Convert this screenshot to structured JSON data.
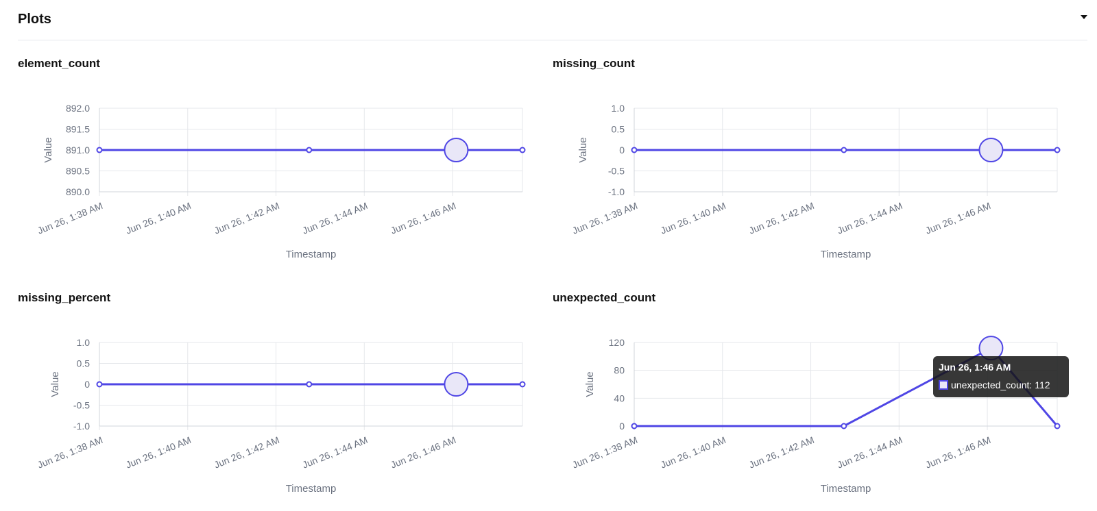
{
  "section": {
    "title": "Plots",
    "toggle_icon": "caret-down-icon"
  },
  "colors": {
    "line": "#4f46e5",
    "point_fill": "#e9e7f8",
    "grid": "#e5e7eb",
    "tick": "#6b7280"
  },
  "chart_data": [
    {
      "type": "line",
      "title": "element_count",
      "xlabel": "Timestamp",
      "ylabel": "Value",
      "x_ticks": [
        "Jun 26, 1:38 AM",
        "Jun 26, 1:40 AM",
        "Jun 26, 1:42 AM",
        "Jun 26, 1:44 AM",
        "Jun 26, 1:46 AM"
      ],
      "y_ticks": [
        "892.0",
        "891.5",
        "891.0",
        "890.5",
        "890.0"
      ],
      "ylim": [
        890.0,
        892.0
      ],
      "xlim": [
        "1:38 AM",
        "1:47:35 AM"
      ],
      "grid": true,
      "series": [
        {
          "x": [
            "1:38 AM",
            "1:42:45 AM",
            "1:46:05 AM",
            "1:47:35 AM"
          ],
          "values": [
            891,
            891,
            891,
            891
          ]
        }
      ],
      "highlighted_point": 2
    },
    {
      "type": "line",
      "title": "missing_count",
      "xlabel": "Timestamp",
      "ylabel": "Value",
      "x_ticks": [
        "Jun 26, 1:38 AM",
        "Jun 26, 1:40 AM",
        "Jun 26, 1:42 AM",
        "Jun 26, 1:44 AM",
        "Jun 26, 1:46 AM"
      ],
      "y_ticks": [
        "1.0",
        "0.5",
        "0",
        "-0.5",
        "-1.0"
      ],
      "ylim": [
        -1.0,
        1.0
      ],
      "xlim": [
        "1:38 AM",
        "1:47:35 AM"
      ],
      "grid": true,
      "series": [
        {
          "x": [
            "1:38 AM",
            "1:42:45 AM",
            "1:46:05 AM",
            "1:47:35 AM"
          ],
          "values": [
            0,
            0,
            0,
            0
          ]
        }
      ],
      "highlighted_point": 2
    },
    {
      "type": "line",
      "title": "missing_percent",
      "xlabel": "Timestamp",
      "ylabel": "Value",
      "x_ticks": [
        "Jun 26, 1:38 AM",
        "Jun 26, 1:40 AM",
        "Jun 26, 1:42 AM",
        "Jun 26, 1:44 AM",
        "Jun 26, 1:46 AM"
      ],
      "y_ticks": [
        "1.0",
        "0.5",
        "0",
        "-0.5",
        "-1.0"
      ],
      "ylim": [
        -1.0,
        1.0
      ],
      "xlim": [
        "1:38 AM",
        "1:47:35 AM"
      ],
      "grid": true,
      "series": [
        {
          "x": [
            "1:38 AM",
            "1:42:45 AM",
            "1:46:05 AM",
            "1:47:35 AM"
          ],
          "values": [
            0,
            0,
            0,
            0
          ]
        }
      ],
      "highlighted_point": 2
    },
    {
      "type": "line",
      "title": "unexpected_count",
      "xlabel": "Timestamp",
      "ylabel": "Value",
      "x_ticks": [
        "Jun 26, 1:38 AM",
        "Jun 26, 1:40 AM",
        "Jun 26, 1:42 AM",
        "Jun 26, 1:44 AM",
        "Jun 26, 1:46 AM"
      ],
      "y_ticks": [
        "120",
        "80",
        "40",
        "0"
      ],
      "ylim": [
        0,
        120
      ],
      "xlim": [
        "1:38 AM",
        "1:47:35 AM"
      ],
      "grid": true,
      "series": [
        {
          "name": "unexpected_count",
          "x": [
            "1:38 AM",
            "1:42:45 AM",
            "1:46:05 AM",
            "1:47:35 AM"
          ],
          "values": [
            0,
            0,
            112,
            0
          ]
        }
      ],
      "highlighted_point": 2,
      "tooltip": {
        "title": "Jun 26, 1:46 AM",
        "label": "unexpected_count: 112"
      }
    }
  ]
}
